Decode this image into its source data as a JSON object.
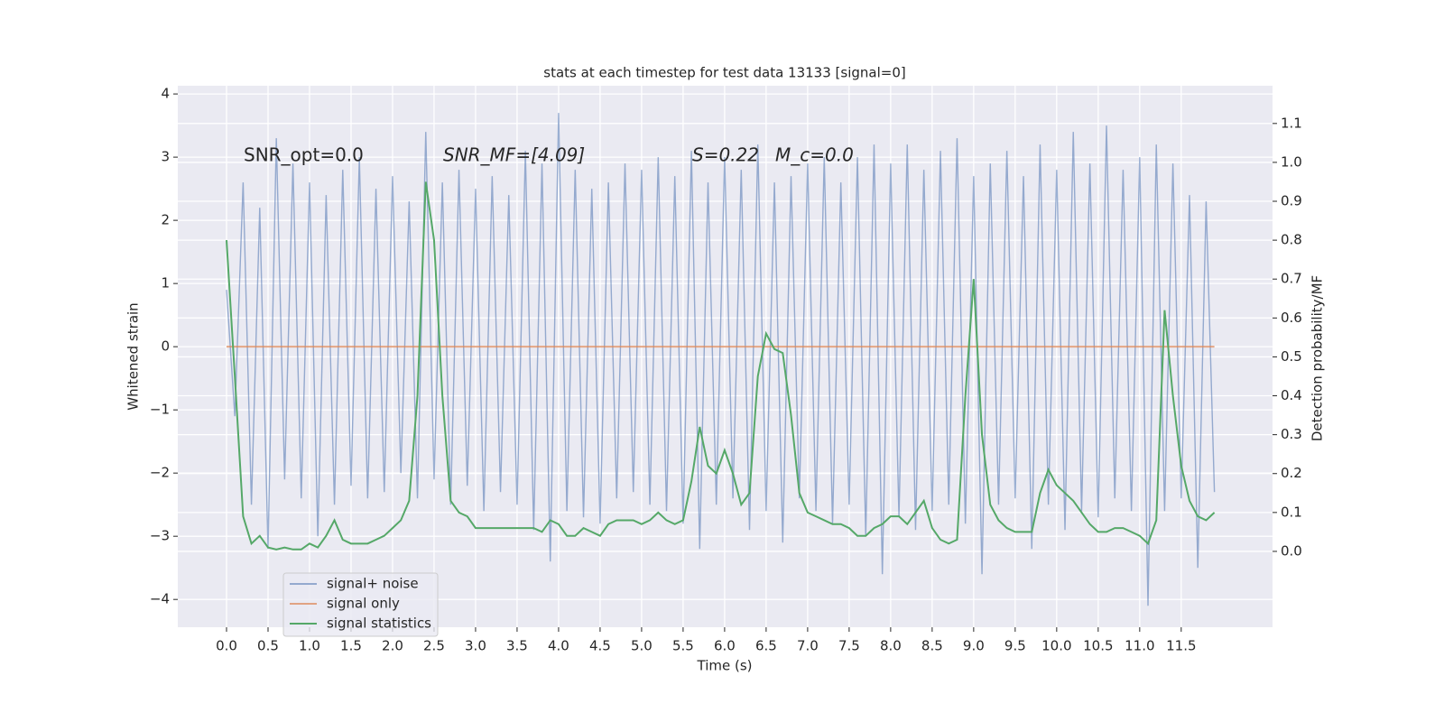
{
  "chart_data": {
    "type": "line",
    "title": "stats at each timestep for test data 13133 [signal=0]",
    "xlabel": "Time (s)",
    "ylabel": "Whitened strain",
    "y2label": "Detection probability/MF",
    "annotations": [
      "SNR_opt=0.0",
      "SNR_MF=[4.09]",
      "S=0.22",
      "M_c=0.0"
    ],
    "x": [
      0,
      0.1,
      0.2,
      0.3,
      0.4,
      0.5,
      0.6,
      0.7,
      0.8,
      0.9,
      1,
      1.1,
      1.2,
      1.3,
      1.4,
      1.5,
      1.6,
      1.7,
      1.8,
      1.9,
      2,
      2.1,
      2.2,
      2.3,
      2.4,
      2.5,
      2.6,
      2.7,
      2.8,
      2.9,
      3,
      3.1,
      3.2,
      3.3,
      3.4,
      3.5,
      3.6,
      3.7,
      3.8,
      3.9,
      4,
      4.1,
      4.2,
      4.3,
      4.4,
      4.5,
      4.6,
      4.7,
      4.8,
      4.9,
      5,
      5.1,
      5.2,
      5.3,
      5.4,
      5.5,
      5.6,
      5.7,
      5.8,
      5.9,
      6,
      6.1,
      6.2,
      6.3,
      6.4,
      6.5,
      6.6,
      6.7,
      6.8,
      6.9,
      7,
      7.1,
      7.2,
      7.3,
      7.4,
      7.5,
      7.6,
      7.7,
      7.8,
      7.9,
      8,
      8.1,
      8.2,
      8.3,
      8.4,
      8.5,
      8.6,
      8.7,
      8.8,
      8.9,
      9,
      9.1,
      9.2,
      9.3,
      9.4,
      9.5,
      9.6,
      9.7,
      9.8,
      9.9,
      10,
      10.1,
      10.2,
      10.3,
      10.4,
      10.5,
      10.6,
      10.7,
      10.8,
      10.9,
      11,
      11.1,
      11.2,
      11.3,
      11.4,
      11.5,
      11.6,
      11.7,
      11.8,
      11.9
    ],
    "series": [
      {
        "name": "signal+ noise",
        "color": "#4c72b0",
        "values": [
          0.9,
          -1.1,
          2.6,
          -2.5,
          2.2,
          -3.2,
          3.3,
          -2.1,
          2.9,
          -2.4,
          2.6,
          -3.0,
          2.4,
          -2.5,
          2.8,
          -2.2,
          3.0,
          -2.4,
          2.5,
          -2.3,
          2.7,
          -2.0,
          2.3,
          -2.4,
          3.4,
          -2.1,
          2.6,
          -2.5,
          2.8,
          -2.2,
          2.5,
          -2.6,
          2.7,
          -2.3,
          2.4,
          -2.5,
          3.1,
          -2.9,
          2.9,
          -3.4,
          3.7,
          -2.6,
          2.8,
          -2.7,
          2.5,
          -2.8,
          2.6,
          -2.4,
          2.9,
          -2.3,
          2.8,
          -2.5,
          3.0,
          -2.6,
          2.7,
          -2.8,
          3.1,
          -3.2,
          2.6,
          -2.5,
          3.0,
          -2.4,
          2.8,
          -2.9,
          3.2,
          -2.6,
          2.6,
          -3.1,
          2.7,
          -2.4,
          2.9,
          -2.6,
          3.0,
          -2.8,
          2.6,
          -2.5,
          3.0,
          -3.0,
          3.2,
          -3.6,
          2.9,
          -2.7,
          3.2,
          -2.9,
          2.8,
          -2.6,
          3.1,
          -2.5,
          3.3,
          -2.8,
          2.7,
          -3.6,
          2.9,
          -2.5,
          3.1,
          -2.4,
          2.7,
          -3.2,
          3.2,
          -2.5,
          2.8,
          -2.9,
          3.4,
          -2.6,
          2.9,
          -2.7,
          3.5,
          -2.4,
          2.8,
          -2.6,
          3.0,
          -4.1,
          3.2,
          -2.6,
          2.9,
          -2.4,
          2.4,
          -3.5,
          2.3,
          -2.3
        ]
      },
      {
        "name": "signal only",
        "color": "#dd8452",
        "values": [
          0,
          0,
          0,
          0,
          0,
          0,
          0,
          0,
          0,
          0,
          0,
          0,
          0,
          0,
          0,
          0,
          0,
          0,
          0,
          0,
          0,
          0,
          0,
          0,
          0,
          0,
          0,
          0,
          0,
          0,
          0,
          0,
          0,
          0,
          0,
          0,
          0,
          0,
          0,
          0,
          0,
          0,
          0,
          0,
          0,
          0,
          0,
          0,
          0,
          0,
          0,
          0,
          0,
          0,
          0,
          0,
          0,
          0,
          0,
          0,
          0,
          0,
          0,
          0,
          0,
          0,
          0,
          0,
          0,
          0,
          0,
          0,
          0,
          0,
          0,
          0,
          0,
          0,
          0,
          0,
          0,
          0,
          0,
          0,
          0,
          0,
          0,
          0,
          0,
          0,
          0,
          0,
          0,
          0,
          0,
          0,
          0,
          0,
          0,
          0,
          0,
          0,
          0,
          0,
          0,
          0,
          0,
          0,
          0,
          0,
          0,
          0,
          0,
          0,
          0,
          0,
          0,
          0,
          0,
          0
        ]
      },
      {
        "name": "signal statistics",
        "color": "#55a868",
        "axis": "y2",
        "values": [
          0.8,
          0.45,
          0.09,
          0.02,
          0.04,
          0.01,
          0.005,
          0.01,
          0.005,
          0.005,
          0.02,
          0.01,
          0.04,
          0.08,
          0.03,
          0.02,
          0.02,
          0.02,
          0.03,
          0.04,
          0.06,
          0.08,
          0.13,
          0.4,
          0.95,
          0.8,
          0.4,
          0.13,
          0.1,
          0.09,
          0.06,
          0.06,
          0.06,
          0.06,
          0.06,
          0.06,
          0.06,
          0.06,
          0.05,
          0.08,
          0.07,
          0.04,
          0.04,
          0.06,
          0.05,
          0.04,
          0.07,
          0.08,
          0.08,
          0.08,
          0.07,
          0.08,
          0.1,
          0.08,
          0.07,
          0.08,
          0.18,
          0.32,
          0.22,
          0.2,
          0.26,
          0.2,
          0.12,
          0.15,
          0.45,
          0.56,
          0.52,
          0.51,
          0.35,
          0.15,
          0.1,
          0.09,
          0.08,
          0.07,
          0.07,
          0.06,
          0.04,
          0.04,
          0.06,
          0.07,
          0.09,
          0.09,
          0.07,
          0.1,
          0.13,
          0.06,
          0.03,
          0.02,
          0.03,
          0.4,
          0.7,
          0.3,
          0.12,
          0.08,
          0.06,
          0.05,
          0.05,
          0.05,
          0.15,
          0.21,
          0.17,
          0.15,
          0.13,
          0.1,
          0.07,
          0.05,
          0.05,
          0.06,
          0.06,
          0.05,
          0.04,
          0.02,
          0.08,
          0.62,
          0.4,
          0.22,
          0.13,
          0.09,
          0.08,
          0.1
        ]
      }
    ],
    "xlim": [
      -0.587,
      12.6
    ],
    "ylim": [
      -4.44,
      4.13
    ],
    "y2lim": [
      -0.195,
      1.197
    ],
    "xticks": [
      {
        "value": 0,
        "label": "0.0"
      },
      {
        "value": 0.5,
        "label": "0.5"
      },
      {
        "value": 1,
        "label": "1.0"
      },
      {
        "value": 1.5,
        "label": "1.5"
      },
      {
        "value": 2,
        "label": "2.0"
      },
      {
        "value": 2.5,
        "label": "2.5"
      },
      {
        "value": 3,
        "label": "3.0"
      },
      {
        "value": 3.5,
        "label": "3.5"
      },
      {
        "value": 4,
        "label": "4.0"
      },
      {
        "value": 4.5,
        "label": "4.5"
      },
      {
        "value": 5,
        "label": "5.0"
      },
      {
        "value": 5.5,
        "label": "5.5"
      },
      {
        "value": 6,
        "label": "6.0"
      },
      {
        "value": 6.5,
        "label": "6.5"
      },
      {
        "value": 7,
        "label": "7.0"
      },
      {
        "value": 7.5,
        "label": "7.5"
      },
      {
        "value": 8,
        "label": "8.0"
      },
      {
        "value": 8.5,
        "label": "8.5"
      },
      {
        "value": 9,
        "label": "9.0"
      },
      {
        "value": 9.5,
        "label": "9.5"
      },
      {
        "value": 10,
        "label": "10.0"
      },
      {
        "value": 10.5,
        "label": "10.5"
      },
      {
        "value": 11,
        "label": "11.0"
      },
      {
        "value": 11.5,
        "label": "11.5"
      }
    ],
    "yticks": [
      {
        "value": -4,
        "label": "−4"
      },
      {
        "value": -3,
        "label": "−3"
      },
      {
        "value": -2,
        "label": "−2"
      },
      {
        "value": -1,
        "label": "−1"
      },
      0,
      1,
      2,
      3,
      4
    ],
    "y2ticks": [
      {
        "value": 0,
        "label": "0.0"
      },
      {
        "value": 0.1,
        "label": "0.1"
      },
      {
        "value": 0.2,
        "label": "0.2"
      },
      {
        "value": 0.3,
        "label": "0.3"
      },
      {
        "value": 0.4,
        "label": "0.4"
      },
      {
        "value": 0.5,
        "label": "0.5"
      },
      {
        "value": 0.6,
        "label": "0.6"
      },
      {
        "value": 0.7,
        "label": "0.7"
      },
      {
        "value": 0.8,
        "label": "0.8"
      },
      {
        "value": 0.9,
        "label": "0.9"
      },
      {
        "value": 1,
        "label": "1.0"
      },
      {
        "value": 1.1,
        "label": "1.1"
      }
    ],
    "grid": true,
    "legend": "lower left"
  }
}
